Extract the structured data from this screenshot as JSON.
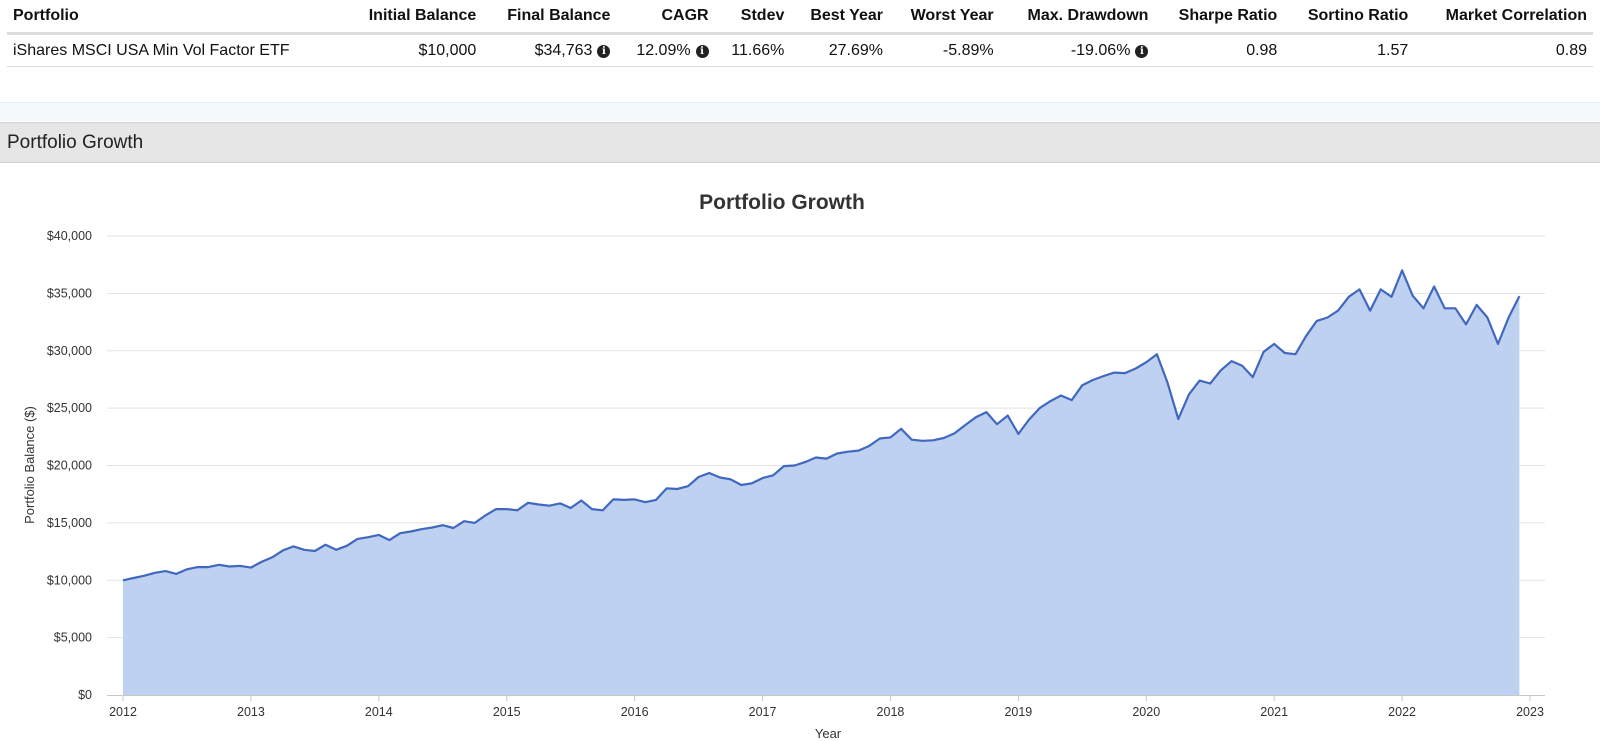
{
  "summary": {
    "headers": [
      "Portfolio",
      "Initial Balance",
      "Final Balance",
      "CAGR",
      "Stdev",
      "Best Year",
      "Worst Year",
      "Max. Drawdown",
      "Sharpe Ratio",
      "Sortino Ratio",
      "Market Correlation"
    ],
    "row": {
      "portfolio": "iShares MSCI USA Min Vol Factor ETF",
      "initial_balance": "$10,000",
      "final_balance": "$34,763",
      "cagr": "12.09%",
      "stdev": "11.66%",
      "best_year": "27.69%",
      "worst_year": "-5.89%",
      "max_drawdown": "-19.06%",
      "sharpe_ratio": "0.98",
      "sortino_ratio": "1.57",
      "market_correlation": "0.89"
    },
    "info_icon_glyph": "i"
  },
  "section": {
    "title": "Portfolio Growth"
  },
  "chart_data": {
    "type": "area",
    "title": "Portfolio Growth",
    "xlabel": "Year",
    "ylabel": "Portfolio Balance ($)",
    "xlim": [
      2012,
      2023
    ],
    "ylim": [
      0,
      40000
    ],
    "x_ticks": [
      "2012",
      "2013",
      "2014",
      "2015",
      "2016",
      "2017",
      "2018",
      "2019",
      "2020",
      "2021",
      "2022",
      "2023"
    ],
    "y_ticks": [
      "$0",
      "$5,000",
      "$10,000",
      "$15,000",
      "$20,000",
      "$25,000",
      "$30,000",
      "$35,000",
      "$40,000"
    ],
    "grid": true,
    "colors": {
      "line": "#4168bf",
      "fill": "#bfd1f0",
      "grid": "#e2e2e2"
    },
    "series": [
      {
        "values": [
          [
            2012.0,
            10000
          ],
          [
            2012.083,
            10200
          ],
          [
            2012.167,
            10400
          ],
          [
            2012.25,
            10650
          ],
          [
            2012.333,
            10800
          ],
          [
            2012.417,
            10550
          ],
          [
            2012.5,
            10950
          ],
          [
            2012.583,
            11150
          ],
          [
            2012.667,
            11150
          ],
          [
            2012.75,
            11350
          ],
          [
            2012.833,
            11200
          ],
          [
            2012.917,
            11250
          ],
          [
            2013.0,
            11100
          ],
          [
            2013.083,
            11600
          ],
          [
            2013.167,
            12000
          ],
          [
            2013.25,
            12600
          ],
          [
            2013.333,
            12950
          ],
          [
            2013.417,
            12650
          ],
          [
            2013.5,
            12550
          ],
          [
            2013.583,
            13100
          ],
          [
            2013.667,
            12650
          ],
          [
            2013.75,
            13000
          ],
          [
            2013.833,
            13600
          ],
          [
            2013.917,
            13750
          ],
          [
            2014.0,
            13950
          ],
          [
            2014.083,
            13500
          ],
          [
            2014.167,
            14100
          ],
          [
            2014.25,
            14250
          ],
          [
            2014.333,
            14450
          ],
          [
            2014.417,
            14600
          ],
          [
            2014.5,
            14800
          ],
          [
            2014.583,
            14550
          ],
          [
            2014.667,
            15150
          ],
          [
            2014.75,
            15000
          ],
          [
            2014.833,
            15650
          ],
          [
            2014.917,
            16200
          ],
          [
            2015.0,
            16200
          ],
          [
            2015.083,
            16100
          ],
          [
            2015.167,
            16750
          ],
          [
            2015.25,
            16600
          ],
          [
            2015.333,
            16500
          ],
          [
            2015.417,
            16700
          ],
          [
            2015.5,
            16300
          ],
          [
            2015.583,
            16950
          ],
          [
            2015.667,
            16200
          ],
          [
            2015.75,
            16100
          ],
          [
            2015.833,
            17050
          ],
          [
            2015.917,
            17000
          ],
          [
            2016.0,
            17050
          ],
          [
            2016.083,
            16800
          ],
          [
            2016.167,
            17000
          ],
          [
            2016.25,
            18000
          ],
          [
            2016.333,
            17950
          ],
          [
            2016.417,
            18200
          ],
          [
            2016.5,
            19000
          ],
          [
            2016.583,
            19350
          ],
          [
            2016.667,
            18950
          ],
          [
            2016.75,
            18800
          ],
          [
            2016.833,
            18300
          ],
          [
            2016.917,
            18450
          ],
          [
            2017.0,
            18900
          ],
          [
            2017.083,
            19150
          ],
          [
            2017.167,
            19950
          ],
          [
            2017.25,
            20000
          ],
          [
            2017.333,
            20300
          ],
          [
            2017.417,
            20700
          ],
          [
            2017.5,
            20600
          ],
          [
            2017.583,
            21050
          ],
          [
            2017.667,
            21200
          ],
          [
            2017.75,
            21300
          ],
          [
            2017.833,
            21700
          ],
          [
            2017.917,
            22350
          ],
          [
            2018.0,
            22450
          ],
          [
            2018.083,
            23200
          ],
          [
            2018.167,
            22250
          ],
          [
            2018.25,
            22150
          ],
          [
            2018.333,
            22200
          ],
          [
            2018.417,
            22400
          ],
          [
            2018.5,
            22800
          ],
          [
            2018.583,
            23500
          ],
          [
            2018.667,
            24200
          ],
          [
            2018.75,
            24650
          ],
          [
            2018.833,
            23600
          ],
          [
            2018.917,
            24350
          ],
          [
            2019.0,
            22750
          ],
          [
            2019.083,
            24000
          ],
          [
            2019.167,
            25000
          ],
          [
            2019.25,
            25600
          ],
          [
            2019.333,
            26100
          ],
          [
            2019.417,
            25700
          ],
          [
            2019.5,
            27000
          ],
          [
            2019.583,
            27450
          ],
          [
            2019.667,
            27800
          ],
          [
            2019.75,
            28100
          ],
          [
            2019.833,
            28050
          ],
          [
            2019.917,
            28450
          ],
          [
            2020.0,
            29000
          ],
          [
            2020.083,
            29700
          ],
          [
            2020.167,
            27200
          ],
          [
            2020.25,
            24050
          ],
          [
            2020.333,
            26200
          ],
          [
            2020.417,
            27400
          ],
          [
            2020.5,
            27150
          ],
          [
            2020.583,
            28300
          ],
          [
            2020.667,
            29100
          ],
          [
            2020.75,
            28700
          ],
          [
            2020.833,
            27700
          ],
          [
            2020.917,
            29900
          ],
          [
            2021.0,
            30600
          ],
          [
            2021.083,
            29800
          ],
          [
            2021.167,
            29700
          ],
          [
            2021.25,
            31300
          ],
          [
            2021.333,
            32600
          ],
          [
            2021.417,
            32900
          ],
          [
            2021.5,
            33500
          ],
          [
            2021.583,
            34700
          ],
          [
            2021.667,
            35350
          ],
          [
            2021.75,
            33500
          ],
          [
            2021.833,
            35350
          ],
          [
            2021.917,
            34700
          ],
          [
            2022.0,
            37000
          ],
          [
            2022.083,
            34800
          ],
          [
            2022.167,
            33700
          ],
          [
            2022.25,
            35600
          ],
          [
            2022.333,
            33700
          ],
          [
            2022.417,
            33700
          ],
          [
            2022.5,
            32300
          ],
          [
            2022.583,
            34000
          ],
          [
            2022.667,
            32900
          ],
          [
            2022.75,
            30600
          ],
          [
            2022.833,
            32900
          ],
          [
            2022.917,
            34763
          ]
        ]
      }
    ]
  }
}
